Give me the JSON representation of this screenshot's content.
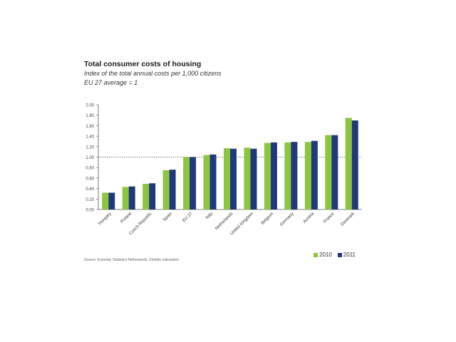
{
  "chart_data": {
    "type": "bar",
    "title": "Total consumer costs of housing",
    "subtitle": "Index of the total annual costs per 1,000 citizens",
    "note": "EU 27 average = 1",
    "categories": [
      "Hungary",
      "Poland",
      "Czech Republic",
      "Spain",
      "EU 27",
      "Italy",
      "Netherlands",
      "United Kingdom",
      "Belgium",
      "Germany",
      "Austria",
      "France",
      "Denmark"
    ],
    "series": [
      {
        "name": "2010",
        "color": "#8cc63f",
        "values": [
          0.32,
          0.43,
          0.49,
          0.75,
          1.0,
          1.04,
          1.17,
          1.18,
          1.27,
          1.28,
          1.29,
          1.42,
          1.75
        ]
      },
      {
        "name": "2011",
        "color": "#1f3a7a",
        "values": [
          0.32,
          0.44,
          0.5,
          0.76,
          1.0,
          1.05,
          1.16,
          1.16,
          1.28,
          1.29,
          1.31,
          1.42,
          1.7
        ]
      }
    ],
    "ylim": [
      0,
      2.0
    ],
    "yticks": [
      "2.00",
      "1.80",
      "1.60",
      "1.40",
      "1.20",
      "1.00",
      "0.80",
      "0.60",
      "0.40",
      "0.20",
      "0.00"
    ],
    "reference_line": 1.0,
    "grid": false,
    "legend_position": "bottom-right",
    "source": "Source: Eurostat, Statistics Netherlands, Deloitte calculation"
  }
}
